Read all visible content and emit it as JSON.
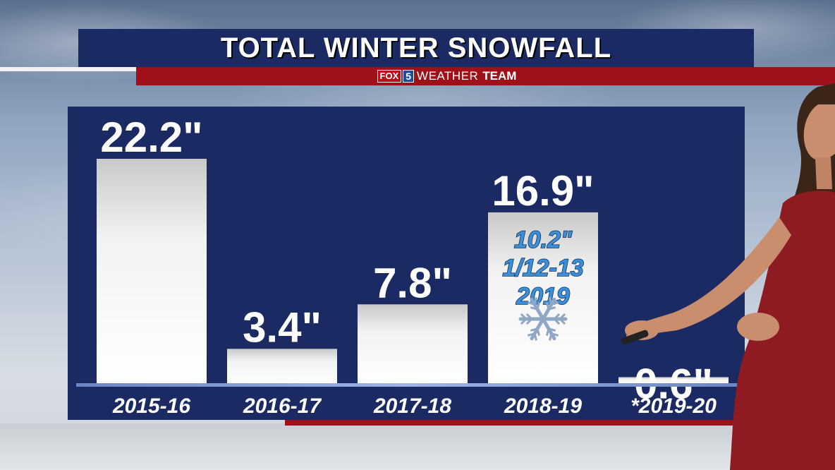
{
  "header": {
    "title": "TOTAL WINTER SNOWFALL",
    "logo_fox": "FOX",
    "logo_five": "5",
    "logo_weather": "WEATHER",
    "logo_team": "TEAM"
  },
  "colors": {
    "panel": "#1b2a63",
    "accent_red": "#a01018",
    "bar": "#f2f2f2",
    "annotation": "#3a8fd8"
  },
  "chart_data": {
    "type": "bar",
    "title": "TOTAL WINTER SNOWFALL",
    "categories": [
      "2015-16",
      "2016-17",
      "2017-18",
      "2018-19",
      "*2019-20"
    ],
    "values": [
      22.2,
      3.4,
      7.8,
      16.9,
      0.6
    ],
    "value_labels": [
      "22.2\"",
      "3.4\"",
      "7.8\"",
      "16.9\"",
      "0.6\""
    ],
    "xlabel": "",
    "ylabel": "",
    "ylim": [
      0,
      22.2
    ],
    "grid": false,
    "legend": "none",
    "annotations": [
      {
        "category": "2018-19",
        "lines": [
          "10.2\"",
          "1/12-13",
          "2019"
        ]
      }
    ]
  }
}
